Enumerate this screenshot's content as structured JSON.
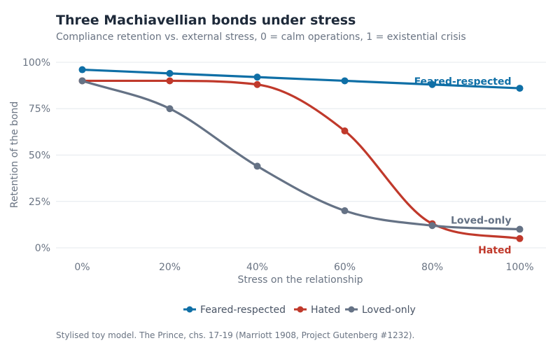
{
  "chart_data": {
    "type": "line",
    "title": "Three Machiavellian bonds under stress",
    "subtitle": "Compliance retention vs. external stress, 0 = calm operations, 1 = existential crisis",
    "xlabel": "Stress on the relationship",
    "ylabel": "Retention of the bond",
    "x": [
      0,
      0.2,
      0.4,
      0.6,
      0.8,
      1.0
    ],
    "x_ticks": [
      0,
      0.2,
      0.4,
      0.6,
      0.8,
      1.0
    ],
    "x_tick_labels": [
      "0%",
      "20%",
      "40%",
      "60%",
      "80%",
      "100%"
    ],
    "y_ticks": [
      0,
      0.25,
      0.5,
      0.75,
      1.0
    ],
    "y_tick_labels": [
      "0%",
      "25%",
      "50%",
      "75%",
      "100%"
    ],
    "xlim": [
      -0.06,
      1.06
    ],
    "ylim": [
      -0.03,
      1.03
    ],
    "grid": "horizontal",
    "legend_position": "bottom",
    "series": [
      {
        "name": "Feared-respected",
        "color": "#0f6fa6",
        "values": [
          0.96,
          0.94,
          0.92,
          0.9,
          0.88,
          0.86
        ],
        "end_label": "Feared-respected"
      },
      {
        "name": "Hated",
        "color": "#c0392b",
        "values": [
          0.9,
          0.9,
          0.88,
          0.63,
          0.13,
          0.05
        ],
        "end_label": "Hated"
      },
      {
        "name": "Loved-only",
        "color": "#657285",
        "values": [
          0.9,
          0.75,
          0.44,
          0.2,
          0.12,
          0.1
        ],
        "end_label": "Loved-only"
      }
    ],
    "caption": "Stylised toy model. The Prince, chs. 17-19 (Marriott 1908, Project Gutenberg #1232)."
  }
}
